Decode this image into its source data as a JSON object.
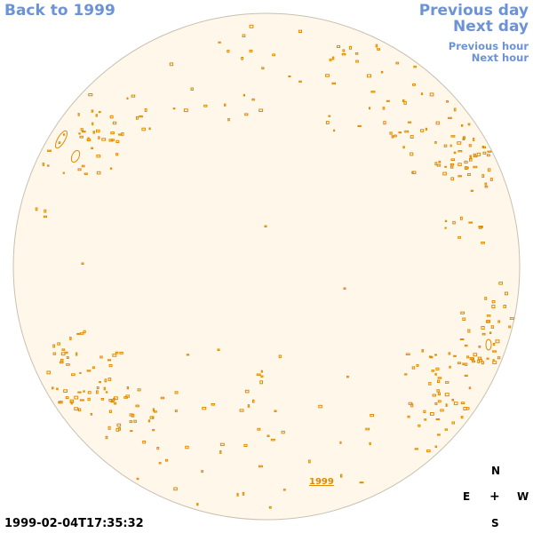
{
  "nav": {
    "back": "Back to 1999",
    "previous_day": "Previous day",
    "next_day": "Next day",
    "previous_hour": "Previous hour",
    "next_hour": "Next hour"
  },
  "timestamp": "1999-02-04T17:35:32",
  "compass": {
    "north": "N",
    "east": "E",
    "center": "+",
    "west": "W",
    "south": "S"
  },
  "map": {
    "region_label": "1999",
    "colors": {
      "disk_fill": "#fff8ea",
      "disk_stroke": "#c8c0b0",
      "feature": "#e08a00",
      "link": "#6b93d6"
    }
  }
}
